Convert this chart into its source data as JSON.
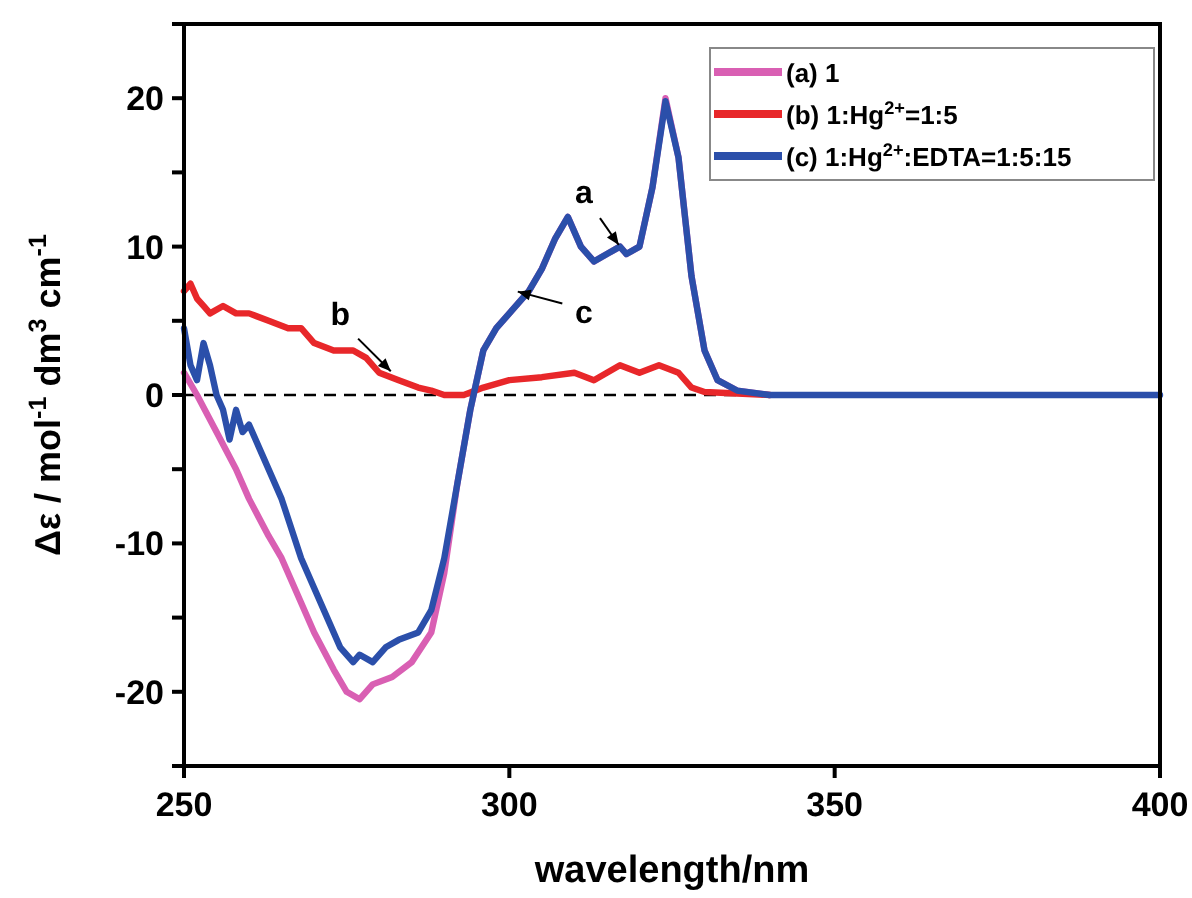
{
  "chart_data": {
    "type": "line",
    "xlabel": "wavelength/nm",
    "ylabel": "Δε / mol$^{-1}$ dm$^{3}$ cm$^{-1}$",
    "xlim": [
      250,
      400
    ],
    "xticks": [
      250,
      300,
      350,
      400
    ],
    "ylim": [
      -25,
      25
    ],
    "yticks": [
      {
        "value": -25,
        "label": null
      },
      -20,
      {
        "value": -15,
        "label": null
      },
      -10,
      {
        "value": -5,
        "label": null
      },
      0,
      {
        "value": 5,
        "label": null
      },
      10,
      {
        "value": 15,
        "label": null
      },
      20,
      {
        "value": 25,
        "label": null
      }
    ],
    "legend": "top right",
    "grid": false,
    "ref_lines": [
      {
        "axis": "y",
        "value": 0,
        "line_style": "dashed",
        "color": "#000000"
      }
    ],
    "annotations": [
      {
        "text": "a",
        "x": 317,
        "y": 10
      },
      {
        "text": "b",
        "x": 282,
        "y": 1.5
      },
      {
        "text": "c",
        "x": 301,
        "y": 7
      }
    ],
    "series": [
      {
        "name": "(a) 1",
        "color": "#d95fb3",
        "x": [
          250,
          252,
          255,
          258,
          260,
          263,
          265,
          268,
          270,
          273,
          275,
          277,
          279,
          282,
          285,
          288,
          290,
          292,
          294,
          296,
          298,
          300,
          303,
          305,
          307,
          309,
          311,
          313,
          315,
          317,
          318,
          320,
          322,
          324,
          326,
          328,
          330,
          332,
          335,
          340
        ],
        "values": [
          1.5,
          0,
          -2.5,
          -5,
          -7,
          -9.5,
          -11,
          -14,
          -16,
          -18.5,
          -20,
          -20.5,
          -19.5,
          -19,
          -18,
          -16,
          -12,
          -6,
          -1,
          3,
          4.5,
          5.5,
          7,
          8.5,
          10.5,
          12,
          10,
          9,
          9.5,
          10,
          9.5,
          10,
          14,
          20,
          16,
          8,
          3,
          1,
          0.3,
          0
        ]
      },
      {
        "name": "(b) 1:Hg$^{2+}$=1:5",
        "color": "#e8272a",
        "x": [
          250,
          251,
          252,
          253,
          254,
          256,
          258,
          260,
          263,
          266,
          268,
          270,
          273,
          276,
          278,
          280,
          283,
          286,
          288,
          290,
          293,
          296,
          300,
          305,
          310,
          313,
          317,
          320,
          323,
          326,
          328,
          330,
          340
        ],
        "values": [
          7,
          7.5,
          6.5,
          6,
          5.5,
          6,
          5.5,
          5.5,
          5,
          4.5,
          4.5,
          3.5,
          3,
          3,
          2.5,
          1.5,
          1,
          0.5,
          0.3,
          0,
          0,
          0.5,
          1,
          1.2,
          1.5,
          1,
          2,
          1.5,
          2,
          1.5,
          0.5,
          0.2,
          0
        ]
      },
      {
        "name": "(c) 1:Hg$^{2+}$:EDTA=1:5:15",
        "color": "#2b4faa",
        "x": [
          250,
          251,
          252,
          253,
          254,
          255,
          256,
          257,
          258,
          259,
          260,
          262,
          265,
          268,
          270,
          272,
          274,
          276,
          277,
          279,
          281,
          283,
          286,
          288,
          290,
          292,
          294,
          296,
          298,
          300,
          303,
          305,
          307,
          309,
          311,
          313,
          315,
          317,
          318,
          320,
          322,
          324,
          326,
          328,
          330,
          332,
          335,
          340,
          350,
          360,
          370,
          380,
          390,
          400
        ],
        "values": [
          4.5,
          2,
          1,
          3.5,
          2,
          0,
          -1,
          -3,
          -1,
          -2.5,
          -2,
          -4,
          -7,
          -11,
          -13,
          -15,
          -17,
          -18,
          -17.5,
          -18,
          -17,
          -16.5,
          -16,
          -14.5,
          -11,
          -6,
          -1,
          3,
          4.5,
          5.5,
          7,
          8.5,
          10.5,
          12,
          10,
          9,
          9.5,
          10,
          9.5,
          10,
          14,
          19.8,
          16,
          8,
          3,
          1,
          0.3,
          0,
          0,
          0,
          0,
          0,
          0,
          0
        ]
      }
    ]
  }
}
